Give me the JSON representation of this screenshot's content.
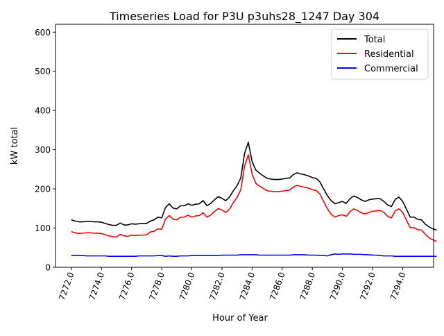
{
  "chart_data": {
    "type": "line",
    "title": "Timeseries Load for P3U p3uhs28_1247  Day 304",
    "xlabel": "Hour of Year",
    "ylabel": "kW total",
    "xlim": [
      7270.95,
      7296.05
    ],
    "ylim": [
      0,
      620
    ],
    "xticks": [
      7272,
      7274,
      7276,
      7278,
      7280,
      7282,
      7284,
      7286,
      7288,
      7290,
      7292,
      7294
    ],
    "xtick_labels": [
      "7272.0",
      "7274.0",
      "7276.0",
      "7278.0",
      "7280.0",
      "7282.0",
      "7284.0",
      "7286.0",
      "7288.0",
      "7290.0",
      "7292.0",
      "7294.0"
    ],
    "yticks": [
      0,
      100,
      200,
      300,
      400,
      500,
      600
    ],
    "ytick_labels": [
      "0",
      "100",
      "200",
      "300",
      "400",
      "500",
      "600"
    ],
    "grid": false,
    "legend": "top-right",
    "x_start": 7272.0,
    "x_step": 0.25,
    "series": [
      {
        "name": "Total",
        "color": "#000000",
        "values": [
          121,
          118,
          116,
          116,
          117,
          117,
          116,
          116,
          115,
          112,
          109,
          107,
          107,
          113,
          108,
          108,
          111,
          110,
          111,
          112,
          112,
          118,
          121,
          128,
          126,
          152,
          162,
          151,
          149,
          157,
          157,
          162,
          158,
          161,
          162,
          170,
          157,
          163,
          172,
          180,
          176,
          170,
          179,
          195,
          208,
          228,
          290,
          319,
          270,
          248,
          240,
          233,
          227,
          225,
          224,
          224,
          225,
          227,
          228,
          237,
          241,
          238,
          236,
          233,
          229,
          227,
          218,
          200,
          183,
          170,
          162,
          165,
          168,
          163,
          175,
          182,
          178,
          172,
          168,
          172,
          174,
          175,
          175,
          168,
          159,
          155,
          173,
          179,
          168,
          148,
          128,
          128,
          122,
          121,
          110,
          103,
          98,
          95
        ]
      },
      {
        "name": "Residential",
        "color": "#ff0000",
        "values": [
          91,
          88,
          86,
          87,
          88,
          88,
          87,
          87,
          86,
          83,
          80,
          78,
          77,
          84,
          80,
          79,
          82,
          81,
          82,
          82,
          83,
          90,
          92,
          98,
          97,
          123,
          132,
          123,
          121,
          128,
          128,
          133,
          128,
          131,
          132,
          139,
          128,
          133,
          142,
          150,
          146,
          140,
          148,
          165,
          178,
          198,
          258,
          287,
          238,
          214,
          207,
          201,
          195,
          194,
          193,
          193,
          194,
          196,
          197,
          205,
          209,
          206,
          204,
          202,
          198,
          196,
          187,
          168,
          149,
          135,
          128,
          132,
          134,
          130,
          142,
          149,
          145,
          139,
          136,
          140,
          143,
          144,
          145,
          140,
          130,
          126,
          144,
          149,
          140,
          120,
          101,
          101,
          96,
          95,
          84,
          75,
          70,
          66
        ]
      },
      {
        "name": "Commercial",
        "color": "#0000ff",
        "values": [
          30,
          30,
          30,
          30,
          29,
          29,
          29,
          29,
          29,
          29,
          28,
          28,
          28,
          28,
          28,
          28,
          28,
          28,
          29,
          29,
          29,
          29,
          29,
          30,
          30,
          28,
          29,
          28,
          28,
          29,
          29,
          29,
          30,
          30,
          30,
          30,
          30,
          30,
          30,
          30,
          31,
          31,
          31,
          31,
          31,
          32,
          32,
          32,
          32,
          32,
          31,
          31,
          31,
          31,
          31,
          31,
          31,
          31,
          31,
          32,
          32,
          32,
          32,
          31,
          31,
          31,
          30,
          30,
          29,
          32,
          34,
          33,
          34,
          34,
          34,
          33,
          33,
          33,
          32,
          32,
          31,
          31,
          30,
          29,
          29,
          29,
          28,
          28,
          28,
          28,
          28,
          28,
          28,
          28,
          28,
          28,
          28,
          28
        ]
      }
    ]
  }
}
